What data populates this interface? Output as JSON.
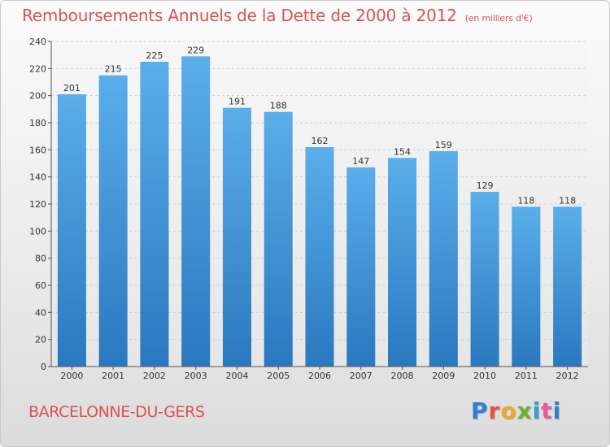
{
  "header": {
    "title": "Remboursements Annuels de la Dette de 2000 à 2012",
    "subtitle": "(en milliers d'€)"
  },
  "footer": {
    "location": "BARCELONNE-DU-GERS",
    "logo_letters": [
      "P",
      "r",
      "o",
      "x",
      "i",
      "t",
      "i"
    ]
  },
  "colors": {
    "title": "#d9534f",
    "bar_top": "#5aaeea",
    "bar_bottom": "#2a78bf"
  },
  "chart_data": {
    "type": "bar",
    "title": "Remboursements Annuels de la Dette de 2000 à 2012",
    "xlabel": "",
    "ylabel": "",
    "categories": [
      "2000",
      "2001",
      "2002",
      "2003",
      "2004",
      "2005",
      "2006",
      "2007",
      "2008",
      "2009",
      "2010",
      "2011",
      "2012"
    ],
    "values": [
      201,
      215,
      225,
      229,
      191,
      188,
      162,
      147,
      154,
      159,
      129,
      118,
      118
    ],
    "ylim": [
      0,
      240
    ],
    "yticks": [
      0,
      20,
      40,
      60,
      80,
      100,
      120,
      140,
      160,
      180,
      200,
      220,
      240
    ],
    "grid": true,
    "legend": "none"
  }
}
